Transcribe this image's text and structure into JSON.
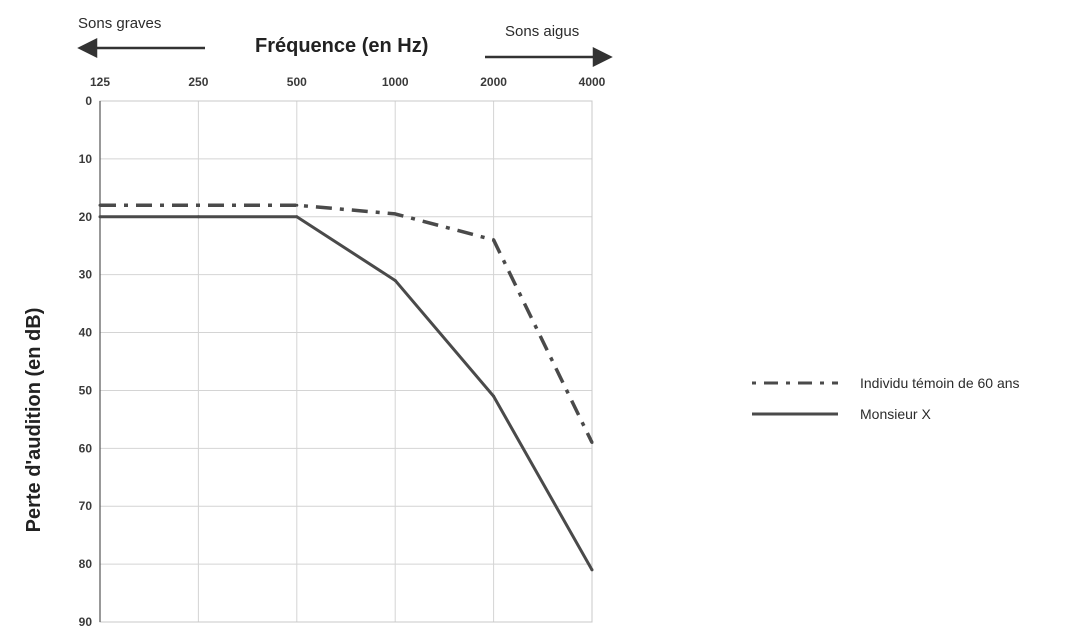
{
  "chart_data": {
    "type": "line",
    "x_scale": "log2",
    "x": [
      125,
      250,
      500,
      1000,
      2000,
      4000
    ],
    "xticklabels": [
      "125",
      "250",
      "500",
      "1000",
      "2000",
      "4000"
    ],
    "xlabel": "Fréquence (en Hz)",
    "ylabel": "Perte d'audition (en dB)",
    "ylim": [
      0,
      90
    ],
    "yticks": [
      0,
      10,
      20,
      30,
      40,
      50,
      60,
      70,
      80,
      90
    ],
    "y_inverted": true,
    "grid": true,
    "annotations": {
      "left": "Sons graves",
      "right": "Sons aigus"
    },
    "legend_position": "right",
    "series": [
      {
        "name": "Individu témoin de 60 ans",
        "style": "dash-dot",
        "color": "#4a4a4a",
        "values": [
          18,
          18,
          18,
          19.5,
          24,
          59
        ]
      },
      {
        "name": "Monsieur X",
        "style": "solid",
        "color": "#4a4a4a",
        "values": [
          20,
          20,
          20,
          31,
          51,
          81
        ]
      }
    ]
  }
}
